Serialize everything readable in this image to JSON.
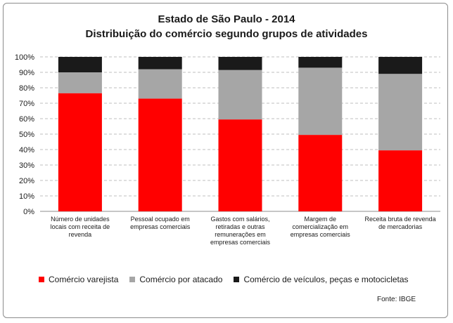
{
  "chart_data": {
    "type": "bar",
    "stacked": true,
    "title": "Estado de São Paulo - 2014",
    "subtitle": "Distribuição do comércio segundo grupos de atividades",
    "categories": [
      [
        "Número de unidades",
        "locais com receita de",
        "revenda"
      ],
      [
        "Pessoal ocupado em",
        "empresas comerciais"
      ],
      [
        "Gastos com salários,",
        "retiradas e outras",
        "remunerações em",
        "empresas comerciais"
      ],
      [
        "Margem de",
        "comercialização em",
        "empresas comerciais"
      ],
      [
        "Receita bruta de revenda",
        "de mercadorias"
      ]
    ],
    "series": [
      {
        "name": "Comércio varejista",
        "color": "#ff0000",
        "values": [
          76.5,
          73,
          59.5,
          49.5,
          39.5
        ]
      },
      {
        "name": "Comércio por atacado",
        "color": "#a6a6a6",
        "values": [
          13.5,
          19,
          32,
          43.5,
          49.5
        ]
      },
      {
        "name": "Comércio de veículos, peças e motocicletas",
        "color": "#1a1a1a",
        "values": [
          10,
          8,
          8.5,
          7,
          11
        ]
      }
    ],
    "yticks": [
      "0%",
      "10%",
      "20%",
      "30%",
      "40%",
      "50%",
      "60%",
      "70%",
      "80%",
      "90%",
      "100%"
    ],
    "ylim": [
      0,
      100
    ],
    "grid": true,
    "legend": "bottom",
    "source": "Fonte: IBGE"
  }
}
